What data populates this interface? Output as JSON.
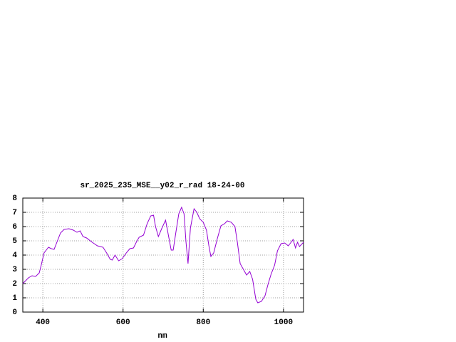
{
  "chart_data": {
    "type": "line",
    "title": "sr_2025_235_MSE__y02_r_rad 18-24-00",
    "x_label": "nm",
    "x": [
      350,
      364,
      373,
      382,
      391,
      396,
      403,
      414,
      421,
      428,
      435,
      444,
      453,
      465,
      476,
      485,
      493,
      500,
      509,
      523,
      536,
      550,
      559,
      568,
      573,
      580,
      589,
      598,
      608,
      617,
      626,
      633,
      640,
      651,
      660,
      669,
      676,
      681,
      688,
      697,
      706,
      713,
      720,
      725,
      732,
      739,
      746,
      752,
      757,
      762,
      768,
      777,
      784,
      791,
      800,
      808,
      814,
      819,
      826,
      835,
      844,
      853,
      860,
      870,
      879,
      885,
      892,
      900,
      908,
      916,
      923,
      931,
      936,
      945,
      954,
      961,
      969,
      978,
      985,
      994,
      1003,
      1012,
      1019,
      1024,
      1030,
      1035,
      1040,
      1050
    ],
    "series": [
      {
        "color": "#9400d3",
        "values": [
          2.0,
          2.4,
          2.55,
          2.5,
          2.75,
          3.3,
          4.15,
          4.55,
          4.45,
          4.4,
          4.9,
          5.55,
          5.8,
          5.85,
          5.75,
          5.6,
          5.7,
          5.3,
          5.2,
          4.9,
          4.65,
          4.55,
          4.15,
          3.7,
          3.65,
          4.0,
          3.6,
          3.75,
          4.15,
          4.45,
          4.5,
          4.9,
          5.25,
          5.4,
          6.2,
          6.75,
          6.8,
          6.0,
          5.3,
          5.9,
          6.45,
          5.4,
          4.35,
          4.35,
          5.65,
          6.9,
          7.35,
          6.9,
          4.9,
          3.4,
          5.9,
          7.25,
          7.0,
          6.55,
          6.3,
          5.75,
          4.65,
          3.9,
          4.15,
          5.15,
          6.05,
          6.2,
          6.4,
          6.3,
          6.0,
          4.9,
          3.4,
          3.0,
          2.6,
          2.85,
          2.3,
          0.9,
          0.65,
          0.75,
          1.15,
          1.9,
          2.65,
          3.3,
          4.3,
          4.8,
          4.85,
          4.65,
          4.9,
          5.1,
          4.5,
          4.9,
          4.6,
          4.9
        ]
      }
    ],
    "xlim": [
      350,
      1050
    ],
    "ylim": [
      0,
      8
    ],
    "xticks": [
      400,
      600,
      800,
      1000
    ],
    "yticks": [
      0,
      1,
      2,
      3,
      4,
      5,
      6,
      7,
      8
    ],
    "grid": true
  }
}
